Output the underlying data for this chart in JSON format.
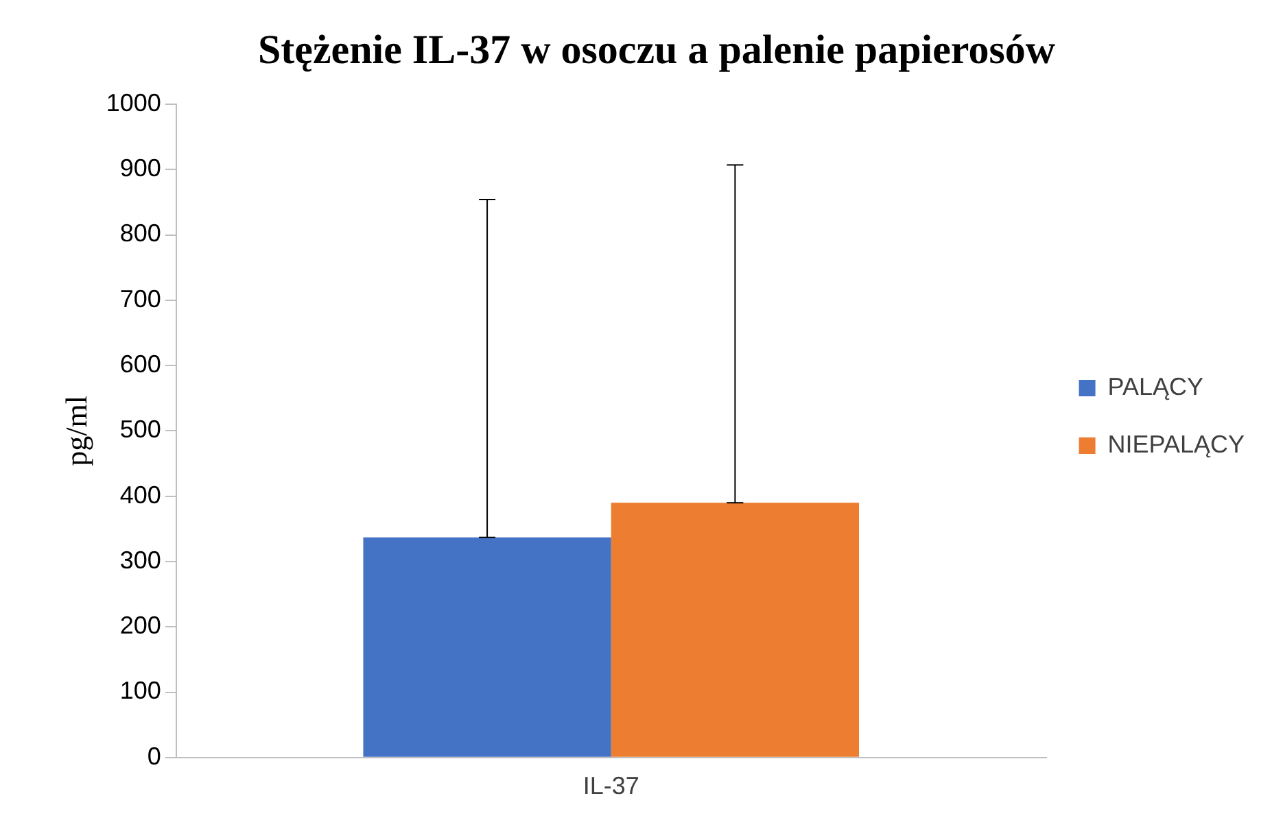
{
  "chart_data": {
    "type": "bar",
    "title": "Stężenie IL-37 w osoczu a palenie papierosów",
    "ylabel": "pg/ml",
    "categories": [
      "IL-37"
    ],
    "series": [
      {
        "name": "PALĄCY",
        "color": "#4472c4",
        "values": [
          337
        ],
        "errors": [
          [
            337,
            854
          ]
        ]
      },
      {
        "name": "NIEPALĄCY",
        "color": "#ed7d31",
        "values": [
          390
        ],
        "errors": [
          [
            390,
            907
          ]
        ]
      }
    ],
    "ylim": [
      0,
      1000
    ],
    "yticks": [
      0,
      100,
      200,
      300,
      400,
      500,
      600,
      700,
      800,
      900,
      1000
    ],
    "grid": false,
    "legend": "right"
  }
}
